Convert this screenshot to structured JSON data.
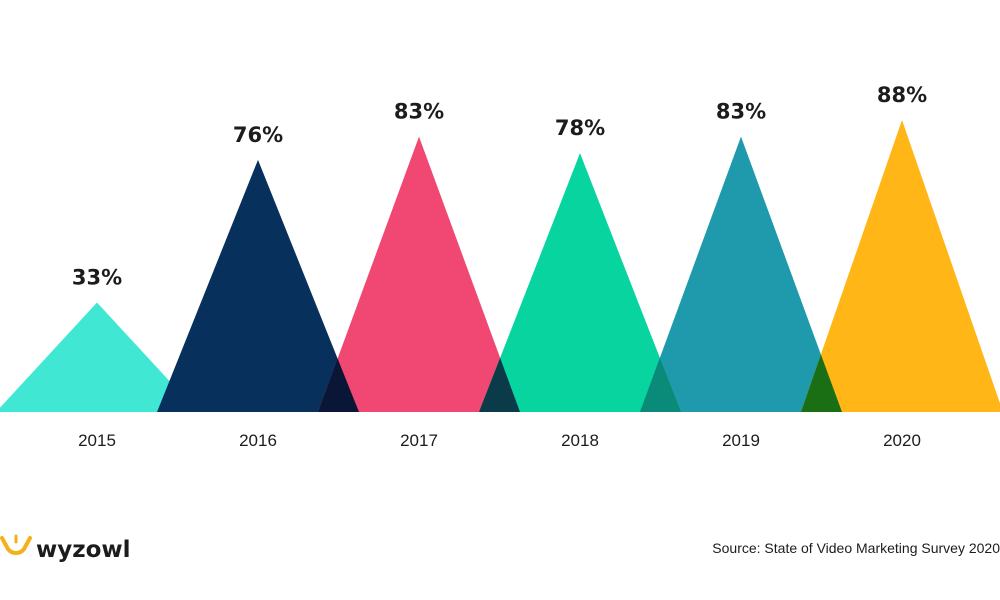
{
  "chart_data": {
    "type": "bar",
    "style": "triangle",
    "categories": [
      "2015",
      "2016",
      "2017",
      "2018",
      "2019",
      "2020"
    ],
    "values": [
      33,
      76,
      83,
      78,
      83,
      88
    ],
    "value_labels": [
      "33%",
      "76%",
      "83%",
      "78%",
      "83%",
      "88%"
    ],
    "colors": [
      "#40e8d4",
      "#08305c",
      "#f04872",
      "#08d4a0",
      "#1e9aac",
      "#ffb616"
    ],
    "overlap_colors": [
      "#0a1636",
      "#0b3a48",
      "#0a8a78",
      "#1a6e14"
    ],
    "ylim": [
      0,
      88
    ],
    "title": "",
    "xlabel": "",
    "ylabel": ""
  },
  "branding": {
    "logo_text": "wyzowl",
    "logo_icon": "wyzowl-owl-icon",
    "logo_color": "#f5b11c"
  },
  "source": "Source: State of Video Marketing Survey 2020"
}
